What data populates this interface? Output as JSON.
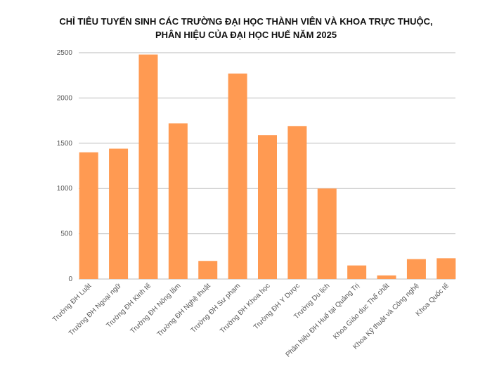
{
  "chart_data": {
    "type": "bar",
    "title": [
      "CHỈ TIÊU TUYỂN SINH CÁC TRƯỜNG ĐẠI HỌC THÀNH VIÊN VÀ KHOA TRỰC THUỘC,",
      "PHÂN HIỆU CỦA ĐẠI HỌC HUẾ NĂM 2025"
    ],
    "categories": [
      "Trường ĐH Luật",
      "Trường ĐH Ngoại ngữ",
      "Trường ĐH Kinh tế",
      "Trường ĐH Nông lâm",
      "Trường ĐH Nghệ thuật",
      "Trường ĐH Sư phạm",
      "Trường ĐH Khoa học",
      "Trường ĐH Y Dược",
      "Trường Du lịch",
      "Phân hiệu ĐH Huế tại Quảng Trị",
      "Khoa Giáo dục Thể chất",
      "Khoa Kỹ thuật và Công nghệ",
      "Khoa Quốc tế"
    ],
    "values": [
      1400,
      1440,
      2480,
      1720,
      200,
      2270,
      1590,
      1690,
      1000,
      150,
      40,
      220,
      230
    ],
    "color": "#ff9a52",
    "ylim": [
      0,
      2500
    ],
    "yticks": [
      0,
      500,
      1000,
      1500,
      2000,
      2500
    ],
    "grid": true
  }
}
